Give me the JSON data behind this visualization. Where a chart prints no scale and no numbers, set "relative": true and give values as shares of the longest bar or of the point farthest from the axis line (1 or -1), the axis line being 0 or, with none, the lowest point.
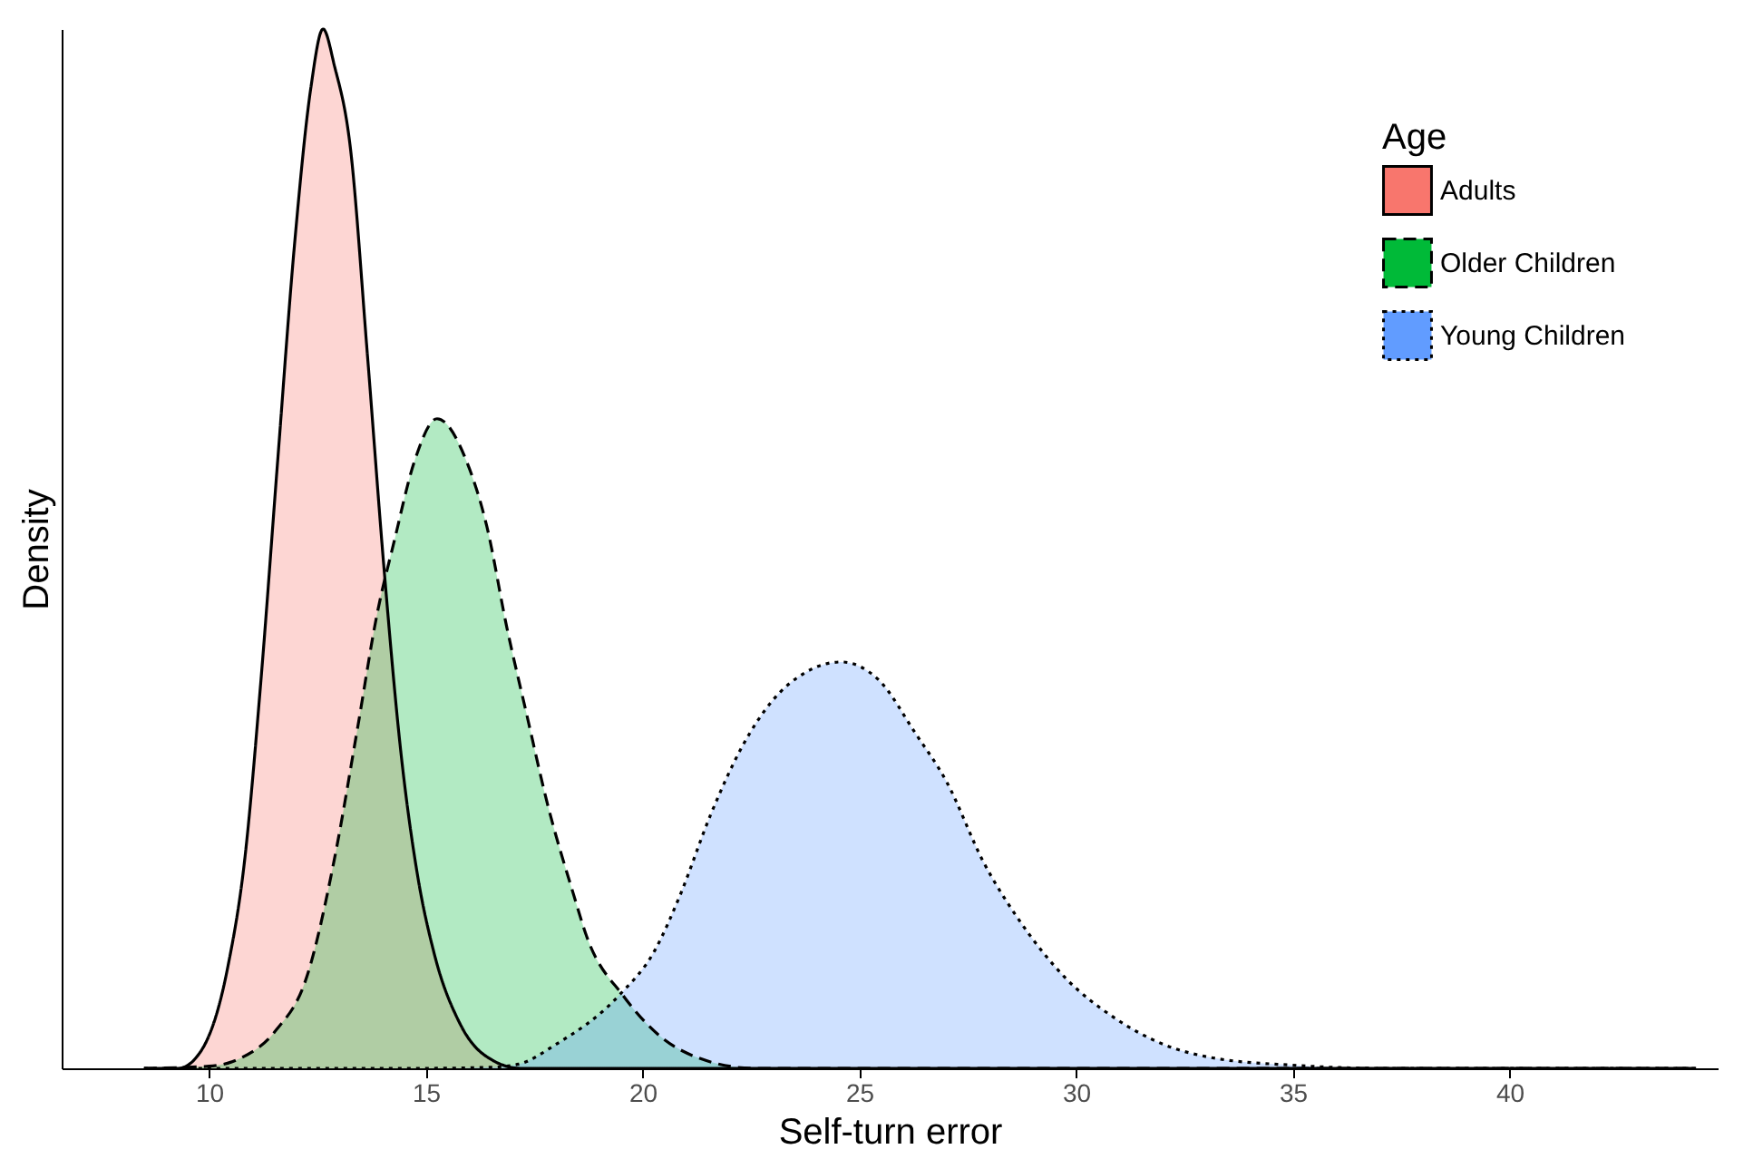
{
  "chart_data": {
    "type": "area",
    "relative": true,
    "xlabel": "Self-turn error",
    "ylabel": "Density",
    "legend_title": "Age",
    "legend": "top right",
    "tick_labels": "x",
    "xlim": [
      6.6,
      44.8
    ],
    "xticks": [
      10,
      15,
      20,
      25,
      30,
      35,
      40
    ],
    "series": [
      {
        "name": "Adults",
        "color": "#f8766d",
        "line_style": "solid",
        "x": [
          8.5,
          9.29,
          9.82,
          10.43,
          10.82,
          11.2,
          11.58,
          11.97,
          12.35,
          12.63,
          12.89,
          13.27,
          13.65,
          14.04,
          14.42,
          14.8,
          15.19,
          15.8,
          16.57,
          17.18,
          44.3
        ],
        "values": [
          0,
          0,
          0.017,
          0.097,
          0.2,
          0.375,
          0.583,
          0.792,
          0.944,
          1.0,
          0.965,
          0.882,
          0.688,
          0.479,
          0.306,
          0.188,
          0.111,
          0.042,
          0.007,
          0,
          0
        ]
      },
      {
        "name": "Older Children",
        "color": "#00ba38",
        "line_style": "dashed",
        "x": [
          8.5,
          10.0,
          10.74,
          11.51,
          12.27,
          12.89,
          13.42,
          13.88,
          14.27,
          14.73,
          15.26,
          15.95,
          16.41,
          16.87,
          17.33,
          17.79,
          18.41,
          18.71,
          19.57,
          20.43,
          21.29,
          22.58,
          44.3
        ],
        "values": [
          0,
          0.002,
          0.01,
          0.035,
          0.09,
          0.201,
          0.326,
          0.438,
          0.507,
          0.583,
          0.625,
          0.583,
          0.521,
          0.424,
          0.34,
          0.257,
          0.167,
          0.127,
          0.069,
          0.03,
          0.01,
          0,
          0
        ]
      },
      {
        "name": "Young Children",
        "color": "#619cff",
        "line_style": "dotted",
        "x": [
          8.5,
          15.0,
          16.5,
          17.14,
          18.0,
          19.43,
          20.29,
          20.86,
          21.57,
          22.29,
          23.0,
          23.72,
          24.58,
          25.44,
          26.3,
          27.01,
          27.87,
          28.73,
          29.73,
          30.87,
          32.02,
          33.16,
          35.0,
          37.0,
          44.3
        ],
        "values": [
          0,
          0,
          0.001,
          0.004,
          0.023,
          0.069,
          0.114,
          0.166,
          0.244,
          0.309,
          0.354,
          0.38,
          0.391,
          0.374,
          0.322,
          0.276,
          0.198,
          0.14,
          0.088,
          0.049,
          0.023,
          0.01,
          0.003,
          0,
          0
        ]
      }
    ]
  }
}
